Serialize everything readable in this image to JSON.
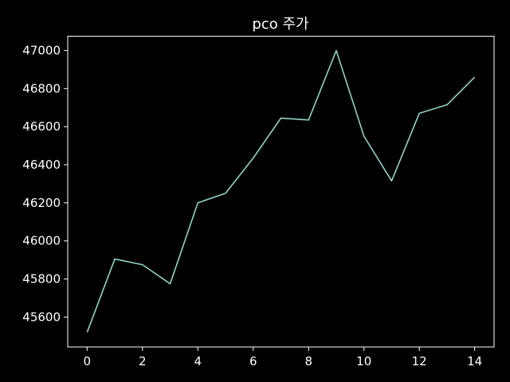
{
  "chart_data": {
    "type": "line",
    "title": "pco 주가",
    "xlabel": "",
    "ylabel": "",
    "xlim": [
      -0.7,
      14.7
    ],
    "ylim": [
      45443,
      47075
    ],
    "xticks": [
      0,
      2,
      4,
      6,
      8,
      10,
      12,
      14
    ],
    "yticks": [
      45600,
      45800,
      46000,
      46200,
      46400,
      46600,
      46800,
      47000
    ],
    "grid": false,
    "legend": "none",
    "colors": {
      "background": "#000000",
      "axes": "#ffffff",
      "line": "#8dd3c7",
      "text": "#ffffff"
    },
    "series": [
      {
        "x": [
          0,
          1,
          2,
          3,
          4,
          5,
          6,
          7,
          8,
          9,
          10,
          11,
          12,
          13,
          14
        ],
        "values": [
          45520,
          45905,
          45875,
          45775,
          46200,
          46250,
          46435,
          46645,
          46635,
          47000,
          46550,
          46315,
          46670,
          46715,
          46860
        ]
      }
    ]
  }
}
